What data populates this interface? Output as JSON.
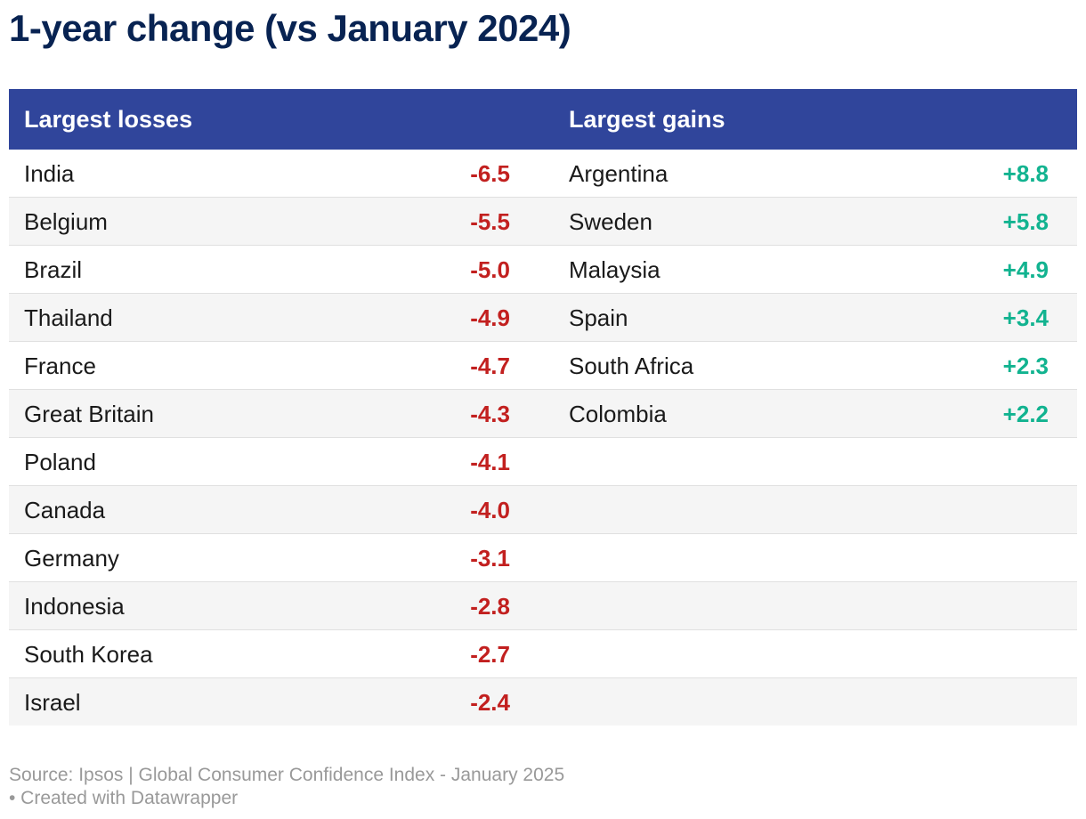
{
  "chart_data": {
    "type": "table",
    "title": "1-year change (vs January 2024)",
    "columns": [
      "Largest losses",
      "Largest gains"
    ],
    "losses": [
      {
        "country": "India",
        "value": "-6.5"
      },
      {
        "country": "Belgium",
        "value": "-5.5"
      },
      {
        "country": "Brazil",
        "value": "-5.0"
      },
      {
        "country": "Thailand",
        "value": "-4.9"
      },
      {
        "country": "France",
        "value": "-4.7"
      },
      {
        "country": "Great Britain",
        "value": "-4.3"
      },
      {
        "country": "Poland",
        "value": "-4.1"
      },
      {
        "country": "Canada",
        "value": "-4.0"
      },
      {
        "country": "Germany",
        "value": "-3.1"
      },
      {
        "country": "Indonesia",
        "value": "-2.8"
      },
      {
        "country": "South Korea",
        "value": "-2.7"
      },
      {
        "country": "Israel",
        "value": "-2.4"
      }
    ],
    "gains": [
      {
        "country": "Argentina",
        "value": "+8.8"
      },
      {
        "country": "Sweden",
        "value": "+5.8"
      },
      {
        "country": "Malaysia",
        "value": "+4.9"
      },
      {
        "country": "Spain",
        "value": "+3.4"
      },
      {
        "country": "South Africa",
        "value": "+2.3"
      },
      {
        "country": "Colombia",
        "value": "+2.2"
      }
    ],
    "source": "Source: Ipsos | Global Consumer Confidence Index - January 2025",
    "credit": "• Created with Datawrapper"
  },
  "colors": {
    "title": "#082352",
    "header_bg": "#30459b",
    "loss": "#c2201f",
    "gain": "#12b390"
  }
}
